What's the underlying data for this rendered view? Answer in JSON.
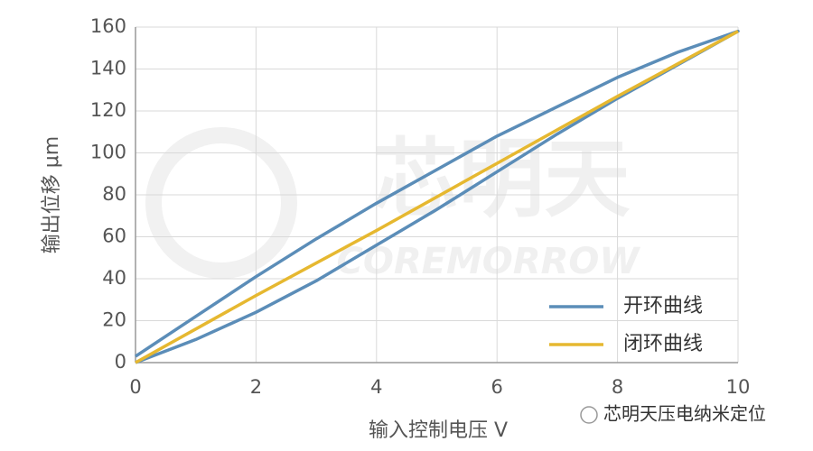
{
  "chart_data": {
    "type": "line",
    "xlabel": "输入控制电压 V",
    "ylabel": "输出位移 μm",
    "xlim": [
      0,
      10
    ],
    "xticks": [
      0,
      2,
      4,
      6,
      8,
      10
    ],
    "ylim": [
      0,
      160
    ],
    "yticks": [
      0,
      20,
      40,
      60,
      80,
      100,
      120,
      140,
      160
    ],
    "grid": true,
    "legend": "lower right",
    "watermark": [
      "芯明天",
      "COREMORROW"
    ],
    "source": "芯明天压电纳米定位",
    "series": [
      {
        "name": "开环曲线",
        "color": "#5b8db8",
        "x": [
          0,
          1,
          2,
          3,
          4,
          5,
          6,
          7,
          8,
          9,
          10,
          9,
          8,
          7,
          6,
          5,
          4,
          3,
          2,
          1,
          0
        ],
        "values": [
          0,
          11,
          24,
          39,
          56,
          73,
          91,
          109,
          126,
          142,
          158,
          148,
          136,
          122,
          108,
          92,
          76,
          59,
          41,
          22,
          3
        ]
      },
      {
        "name": "闭环曲线",
        "color": "#e6b830",
        "x": [
          0,
          2,
          4,
          6,
          8,
          10
        ],
        "values": [
          0,
          32,
          63,
          95,
          127,
          158
        ]
      }
    ]
  }
}
